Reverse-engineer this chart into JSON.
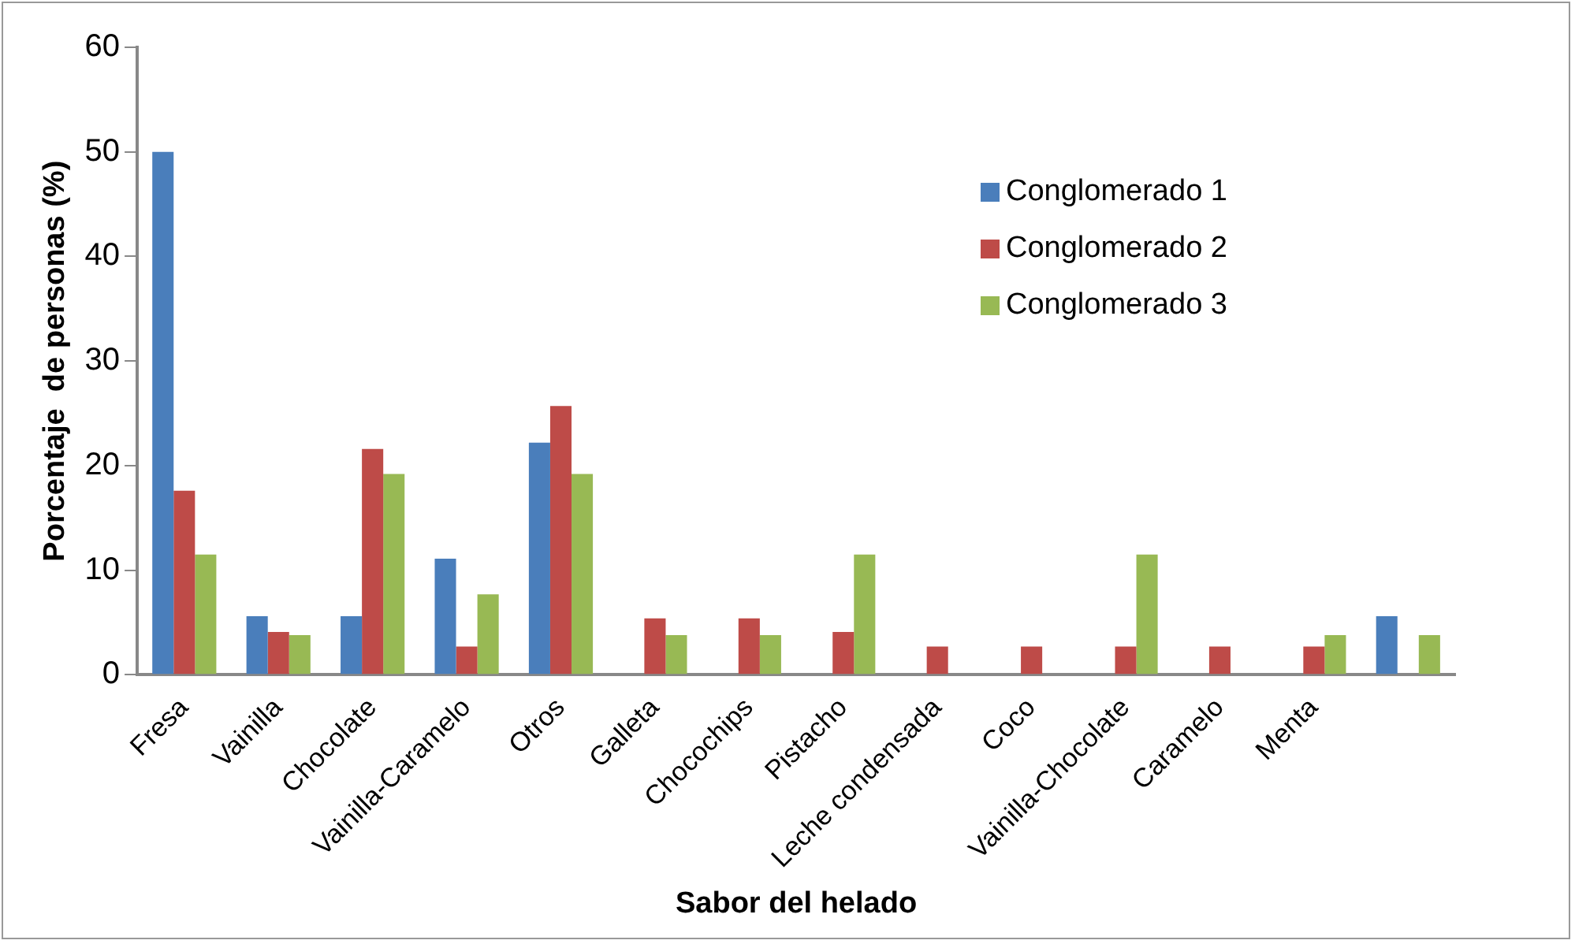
{
  "chart_data": {
    "type": "bar",
    "xlabel": "Sabor del helado",
    "ylabel": "Porcentaje  de personas (%)",
    "categories": [
      "Fresa",
      "Vainilla",
      "Chocolate",
      "Vainilla-Caramelo",
      "Otros",
      "Galleta",
      "Chocochips",
      "Pistacho",
      "Leche condensada",
      "Coco",
      "Vainilla-Chocolate",
      "Caramelo",
      "Menta",
      null
    ],
    "series": [
      {
        "name": "Conglomerado 1",
        "color": "#4a7ebb",
        "values": [
          50,
          5.6,
          5.6,
          11.1,
          22.2,
          0,
          0,
          0,
          0,
          0,
          0,
          0,
          0,
          5.6
        ]
      },
      {
        "name": "Conglomerado 2",
        "color": "#be4b48",
        "values": [
          17.6,
          4.1,
          21.6,
          2.7,
          25.7,
          5.4,
          5.4,
          4.1,
          2.7,
          2.7,
          2.7,
          2.7,
          2.7,
          0
        ]
      },
      {
        "name": "Conglomerado 3",
        "color": "#98b954",
        "values": [
          11.5,
          3.8,
          19.2,
          7.7,
          19.2,
          3.8,
          3.8,
          11.5,
          0,
          0,
          11.5,
          0,
          3.8,
          3.8
        ]
      }
    ],
    "ylim": [
      0,
      60
    ],
    "yticks": [
      0,
      10,
      20,
      30,
      40,
      50,
      60
    ],
    "grid": false,
    "legend": "top right"
  }
}
